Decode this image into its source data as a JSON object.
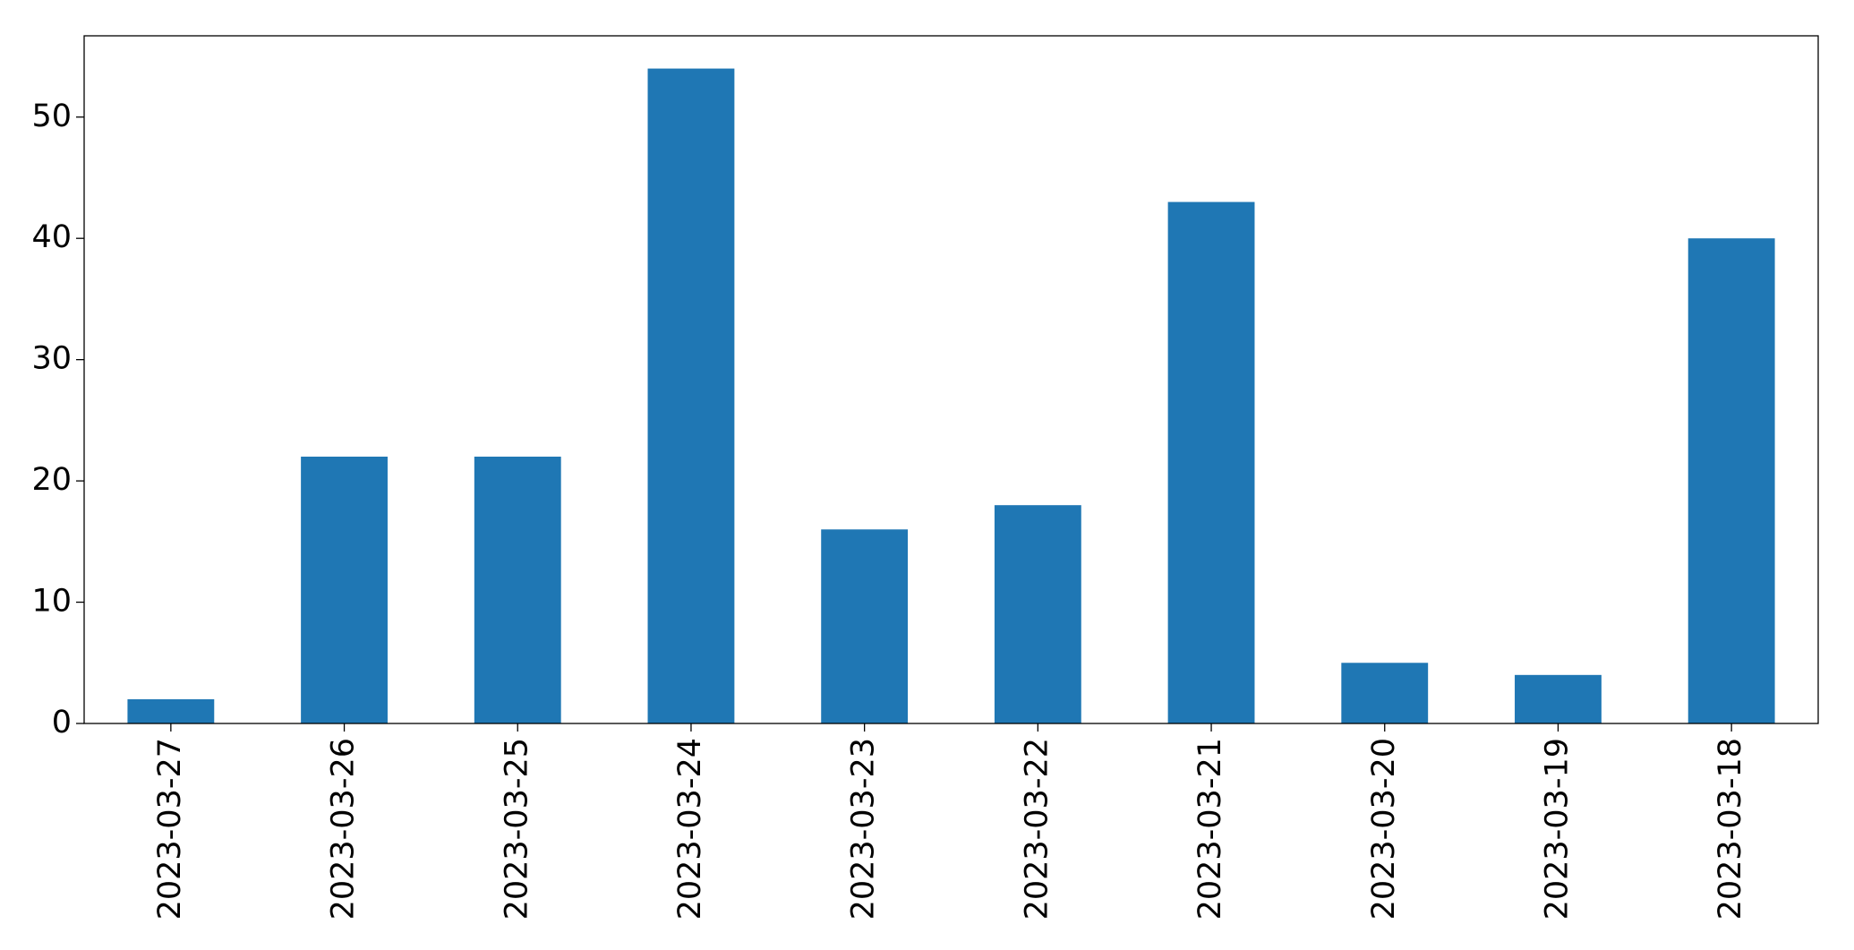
{
  "chart_data": {
    "type": "bar",
    "categories": [
      "2023-03-27",
      "2023-03-26",
      "2023-03-25",
      "2023-03-24",
      "2023-03-23",
      "2023-03-22",
      "2023-03-21",
      "2023-03-20",
      "2023-03-19",
      "2023-03-18"
    ],
    "values": [
      2,
      22,
      22,
      54,
      16,
      18,
      43,
      5,
      4,
      40
    ],
    "color": "#1f77b4",
    "ylim": [
      0,
      56.7
    ],
    "yticks": [
      0,
      10,
      20,
      30,
      40,
      50
    ],
    "grid": false
  }
}
